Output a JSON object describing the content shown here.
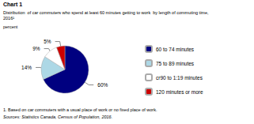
{
  "chart_data": {
    "type": "pie",
    "title": "Chart 1",
    "subtitle": [
      "Distribution  of car commuters who spend at least 60 minutes getting to work  by length of commuting time,",
      "2016¹"
    ],
    "ylabel": "percent",
    "annotations": [
      "1. Based on car commuters with a usual place of work or no fixed place of work.",
      "Sources: Statistics Canada, Census of Population, 2016."
    ],
    "categories": [
      "60 to 74 minutes",
      "75 to 89 minutes",
      "cr90 to 1:19 minutes",
      "120 minutes or more"
    ],
    "values": [
      60,
      14,
      9,
      5
    ],
    "value_labels": [
      "60%",
      "14%",
      "9%",
      "5%"
    ],
    "colors": [
      "#000080",
      "#ADD8E6",
      "#FFFFFF",
      "#CC0000"
    ],
    "data_labels": true,
    "legend": "right"
  }
}
